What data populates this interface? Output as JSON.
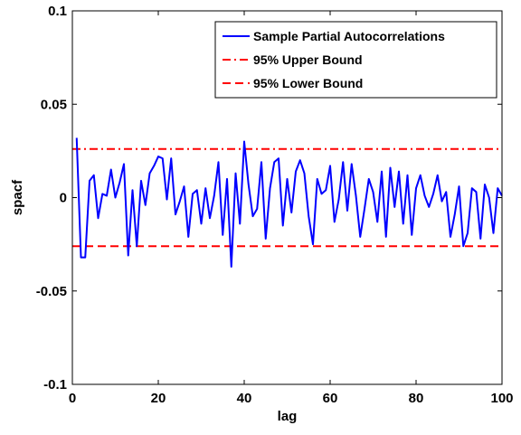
{
  "chart_data": {
    "type": "line",
    "title": "",
    "xlabel": "lag",
    "ylabel": "spacf",
    "xlim": [
      0,
      100
    ],
    "ylim": [
      -0.1,
      0.1
    ],
    "grid": false,
    "legend_placement": "top-right",
    "x_ticks": [
      "0",
      "20",
      "40",
      "60",
      "80",
      "100"
    ],
    "y_ticks": [
      "-0.1",
      "-0.05",
      "0",
      "0.05",
      "0.1"
    ],
    "series": [
      {
        "name": "Sample Partial Autocorrelations",
        "color": "#0000ff",
        "style": "solid",
        "x": [
          1,
          2,
          3,
          4,
          5,
          6,
          7,
          8,
          9,
          10,
          11,
          12,
          13,
          14,
          15,
          16,
          17,
          18,
          19,
          20,
          21,
          22,
          23,
          24,
          25,
          26,
          27,
          28,
          29,
          30,
          31,
          32,
          33,
          34,
          35,
          36,
          37,
          38,
          39,
          40,
          41,
          42,
          43,
          44,
          45,
          46,
          47,
          48,
          49,
          50,
          51,
          52,
          53,
          54,
          55,
          56,
          57,
          58,
          59,
          60,
          61,
          62,
          63,
          64,
          65,
          66,
          67,
          68,
          69,
          70,
          71,
          72,
          73,
          74,
          75,
          76,
          77,
          78,
          79,
          80,
          81,
          82,
          83,
          84,
          85,
          86,
          87,
          88,
          89,
          90,
          91,
          92,
          93,
          94,
          95,
          96,
          97,
          98,
          99,
          100
        ],
        "values": [
          0.032,
          -0.032,
          -0.032,
          0.009,
          0.012,
          -0.011,
          0.002,
          0.001,
          0.015,
          0.0,
          0.008,
          0.018,
          -0.031,
          0.004,
          -0.026,
          0.009,
          -0.004,
          0.013,
          0.017,
          0.022,
          0.021,
          -0.001,
          0.021,
          -0.009,
          -0.002,
          0.006,
          -0.021,
          0.002,
          0.004,
          -0.014,
          0.005,
          -0.011,
          0.001,
          0.019,
          -0.02,
          0.01,
          -0.037,
          0.013,
          -0.014,
          0.03,
          0.007,
          -0.01,
          -0.006,
          0.019,
          -0.022,
          0.005,
          0.019,
          0.021,
          -0.015,
          0.01,
          -0.008,
          0.014,
          0.02,
          0.013,
          -0.01,
          -0.025,
          0.01,
          0.002,
          0.004,
          0.017,
          -0.013,
          -0.001,
          0.019,
          -0.007,
          0.018,
          0.001,
          -0.021,
          -0.006,
          0.01,
          0.003,
          -0.013,
          0.014,
          -0.021,
          0.016,
          -0.005,
          0.014,
          -0.014,
          0.012,
          -0.02,
          0.005,
          0.012,
          0.001,
          -0.005,
          0.002,
          0.012,
          -0.002,
          0.003,
          -0.021,
          -0.009,
          0.006,
          -0.026,
          -0.019,
          0.005,
          0.003,
          -0.022,
          0.007,
          0.0,
          -0.019,
          0.005,
          0.001
        ]
      },
      {
        "name": "95% Upper Bound",
        "color": "#ff0000",
        "style": "dashdot",
        "x": [
          0,
          100
        ],
        "values": [
          0.026,
          0.026
        ]
      },
      {
        "name": "95% Lower Bound",
        "color": "#ff0000",
        "style": "dashed",
        "x": [
          0,
          100
        ],
        "values": [
          -0.026,
          -0.026
        ]
      }
    ]
  }
}
